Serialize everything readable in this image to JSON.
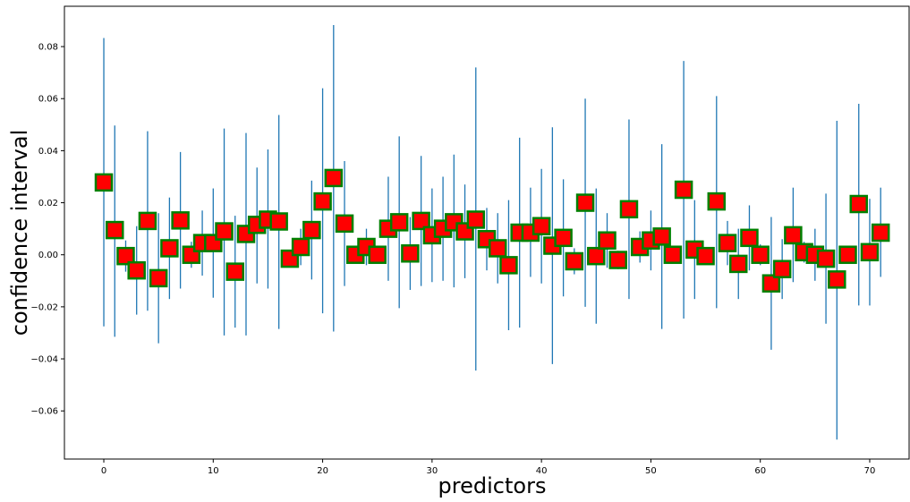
{
  "chart_data": {
    "type": "scatter",
    "xlabel": "predictors",
    "ylabel": "confidence interval",
    "xlim": [
      -3.6,
      73.6
    ],
    "ylim": [
      -0.0785,
      0.0955
    ],
    "xticks": [
      0,
      10,
      20,
      30,
      40,
      50,
      60,
      70
    ],
    "yticks": [
      -0.06,
      -0.04,
      -0.02,
      0.0,
      0.02,
      0.04,
      0.06,
      0.08
    ],
    "xtick_labels": [
      "0",
      "10",
      "20",
      "30",
      "40",
      "50",
      "60",
      "70"
    ],
    "ytick_labels": [
      "−0.06",
      "−0.04",
      "−0.02",
      "0.00",
      "0.02",
      "0.04",
      "0.06",
      "0.08"
    ],
    "grid": false,
    "colors": {
      "marker_face": "#ff0000",
      "marker_edge": "#008000",
      "errorbar": "#1f77b4"
    },
    "points": [
      {
        "x": 0,
        "y": 0.0278,
        "low": -0.0275,
        "high": 0.0833
      },
      {
        "x": 1,
        "y": 0.0095,
        "low": -0.0315,
        "high": 0.0497
      },
      {
        "x": 2,
        "y": -0.0005,
        "low": -0.0065,
        "high": 0.0055
      },
      {
        "x": 3,
        "y": -0.006,
        "low": -0.023,
        "high": 0.011
      },
      {
        "x": 4,
        "y": 0.013,
        "low": -0.0215,
        "high": 0.0475
      },
      {
        "x": 5,
        "y": -0.009,
        "low": -0.034,
        "high": 0.016
      },
      {
        "x": 6,
        "y": 0.0025,
        "low": -0.017,
        "high": 0.022
      },
      {
        "x": 7,
        "y": 0.0132,
        "low": -0.013,
        "high": 0.0395
      },
      {
        "x": 8,
        "y": 0.0,
        "low": -0.005,
        "high": 0.005
      },
      {
        "x": 9,
        "y": 0.0045,
        "low": -0.008,
        "high": 0.017
      },
      {
        "x": 10,
        "y": 0.0045,
        "low": -0.0165,
        "high": 0.0255
      },
      {
        "x": 11,
        "y": 0.009,
        "low": -0.031,
        "high": 0.0485
      },
      {
        "x": 12,
        "y": -0.0065,
        "low": -0.028,
        "high": 0.015
      },
      {
        "x": 13,
        "y": 0.008,
        "low": -0.031,
        "high": 0.0468
      },
      {
        "x": 14,
        "y": 0.0115,
        "low": -0.011,
        "high": 0.0335
      },
      {
        "x": 15,
        "y": 0.0135,
        "low": -0.013,
        "high": 0.0405
      },
      {
        "x": 16,
        "y": 0.0128,
        "low": -0.0285,
        "high": 0.0537
      },
      {
        "x": 17,
        "y": -0.0015,
        "low": -0.0045,
        "high": 0.0015
      },
      {
        "x": 18,
        "y": 0.003,
        "low": -0.004,
        "high": 0.01
      },
      {
        "x": 19,
        "y": 0.0095,
        "low": -0.0095,
        "high": 0.0285
      },
      {
        "x": 20,
        "y": 0.0205,
        "low": -0.0225,
        "high": 0.064
      },
      {
        "x": 21,
        "y": 0.0295,
        "low": -0.0295,
        "high": 0.0883
      },
      {
        "x": 22,
        "y": 0.012,
        "low": -0.012,
        "high": 0.036
      },
      {
        "x": 23,
        "y": 0.0,
        "low": -0.003,
        "high": 0.003
      },
      {
        "x": 24,
        "y": 0.003,
        "low": -0.004,
        "high": 0.01
      },
      {
        "x": 25,
        "y": 0.0,
        "low": -0.003,
        "high": 0.003
      },
      {
        "x": 26,
        "y": 0.01,
        "low": -0.01,
        "high": 0.03
      },
      {
        "x": 27,
        "y": 0.0125,
        "low": -0.0205,
        "high": 0.0455
      },
      {
        "x": 28,
        "y": 0.0005,
        "low": -0.0135,
        "high": 0.0145
      },
      {
        "x": 29,
        "y": 0.013,
        "low": -0.012,
        "high": 0.038
      },
      {
        "x": 30,
        "y": 0.0075,
        "low": -0.0105,
        "high": 0.0255
      },
      {
        "x": 31,
        "y": 0.01,
        "low": -0.01,
        "high": 0.03
      },
      {
        "x": 32,
        "y": 0.0125,
        "low": -0.0125,
        "high": 0.0385
      },
      {
        "x": 33,
        "y": 0.009,
        "low": -0.009,
        "high": 0.027
      },
      {
        "x": 34,
        "y": 0.0135,
        "low": -0.0445,
        "high": 0.072
      },
      {
        "x": 35,
        "y": 0.006,
        "low": -0.006,
        "high": 0.018
      },
      {
        "x": 36,
        "y": 0.0025,
        "low": -0.011,
        "high": 0.016
      },
      {
        "x": 37,
        "y": -0.004,
        "low": -0.029,
        "high": 0.021
      },
      {
        "x": 38,
        "y": 0.0085,
        "low": -0.028,
        "high": 0.045
      },
      {
        "x": 39,
        "y": 0.0085,
        "low": -0.0085,
        "high": 0.0258
      },
      {
        "x": 40,
        "y": 0.011,
        "low": -0.011,
        "high": 0.033
      },
      {
        "x": 41,
        "y": 0.0035,
        "low": -0.042,
        "high": 0.049
      },
      {
        "x": 42,
        "y": 0.0065,
        "low": -0.016,
        "high": 0.029
      },
      {
        "x": 43,
        "y": -0.0025,
        "low": -0.0075,
        "high": 0.0025
      },
      {
        "x": 44,
        "y": 0.02,
        "low": -0.02,
        "high": 0.06
      },
      {
        "x": 45,
        "y": -0.0005,
        "low": -0.0265,
        "high": 0.0255
      },
      {
        "x": 46,
        "y": 0.0055,
        "low": -0.005,
        "high": 0.016
      },
      {
        "x": 47,
        "y": -0.002,
        "low": -0.0055,
        "high": 0.0015
      },
      {
        "x": 48,
        "y": 0.0175,
        "low": -0.017,
        "high": 0.052
      },
      {
        "x": 49,
        "y": 0.003,
        "low": -0.003,
        "high": 0.009
      },
      {
        "x": 50,
        "y": 0.0055,
        "low": -0.006,
        "high": 0.017
      },
      {
        "x": 51,
        "y": 0.007,
        "low": -0.0285,
        "high": 0.0425
      },
      {
        "x": 52,
        "y": 0.0,
        "low": -0.003,
        "high": 0.003
      },
      {
        "x": 53,
        "y": 0.025,
        "low": -0.0245,
        "high": 0.0745
      },
      {
        "x": 54,
        "y": 0.002,
        "low": -0.017,
        "high": 0.021
      },
      {
        "x": 55,
        "y": -0.0005,
        "low": -0.0035,
        "high": 0.0025
      },
      {
        "x": 56,
        "y": 0.0205,
        "low": -0.0205,
        "high": 0.061
      },
      {
        "x": 57,
        "y": 0.0045,
        "low": -0.004,
        "high": 0.013
      },
      {
        "x": 58,
        "y": -0.0035,
        "low": -0.017,
        "high": 0.01
      },
      {
        "x": 59,
        "y": 0.0065,
        "low": -0.006,
        "high": 0.019
      },
      {
        "x": 60,
        "y": 0.0,
        "low": -0.004,
        "high": 0.004
      },
      {
        "x": 61,
        "y": -0.011,
        "low": -0.0365,
        "high": 0.0145
      },
      {
        "x": 62,
        "y": -0.0055,
        "low": -0.017,
        "high": 0.006
      },
      {
        "x": 63,
        "y": 0.0075,
        "low": -0.0105,
        "high": 0.0258
      },
      {
        "x": 64,
        "y": 0.001,
        "low": -0.003,
        "high": 0.005
      },
      {
        "x": 65,
        "y": 0.0,
        "low": -0.01,
        "high": 0.01
      },
      {
        "x": 66,
        "y": -0.0015,
        "low": -0.0265,
        "high": 0.0235
      },
      {
        "x": 67,
        "y": -0.0095,
        "low": -0.071,
        "high": 0.0515
      },
      {
        "x": 68,
        "y": 0.0,
        "low": -0.003,
        "high": 0.003
      },
      {
        "x": 69,
        "y": 0.0195,
        "low": -0.0195,
        "high": 0.058
      },
      {
        "x": 70,
        "y": 0.001,
        "low": -0.0195,
        "high": 0.0215
      },
      {
        "x": 71,
        "y": 0.0085,
        "low": -0.0085,
        "high": 0.0258
      }
    ]
  }
}
